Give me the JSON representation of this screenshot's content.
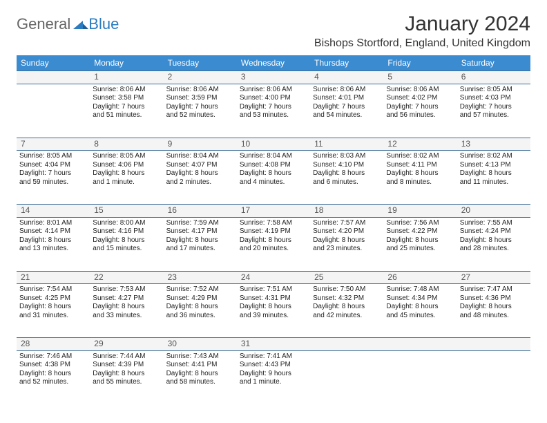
{
  "logo": {
    "text1": "General",
    "text2": "Blue"
  },
  "header": {
    "month_title": "January 2024",
    "location": "Bishops Stortford, England, United Kingdom"
  },
  "colors": {
    "header_bg": "#3a8bd0",
    "header_fg": "#ffffff",
    "daynum_bg": "#f4f4f4",
    "border": "#3a6d95",
    "logo_gray": "#666666",
    "logo_blue": "#2b7cc0"
  },
  "weekdays": [
    "Sunday",
    "Monday",
    "Tuesday",
    "Wednesday",
    "Thursday",
    "Friday",
    "Saturday"
  ],
  "weeks": [
    {
      "nums": [
        "",
        "1",
        "2",
        "3",
        "4",
        "5",
        "6"
      ],
      "cells": [
        null,
        {
          "sunrise": "8:06 AM",
          "sunset": "3:58 PM",
          "day_l1": "Daylight: 7 hours",
          "day_l2": "and 51 minutes."
        },
        {
          "sunrise": "8:06 AM",
          "sunset": "3:59 PM",
          "day_l1": "Daylight: 7 hours",
          "day_l2": "and 52 minutes."
        },
        {
          "sunrise": "8:06 AM",
          "sunset": "4:00 PM",
          "day_l1": "Daylight: 7 hours",
          "day_l2": "and 53 minutes."
        },
        {
          "sunrise": "8:06 AM",
          "sunset": "4:01 PM",
          "day_l1": "Daylight: 7 hours",
          "day_l2": "and 54 minutes."
        },
        {
          "sunrise": "8:06 AM",
          "sunset": "4:02 PM",
          "day_l1": "Daylight: 7 hours",
          "day_l2": "and 56 minutes."
        },
        {
          "sunrise": "8:05 AM",
          "sunset": "4:03 PM",
          "day_l1": "Daylight: 7 hours",
          "day_l2": "and 57 minutes."
        }
      ]
    },
    {
      "nums": [
        "7",
        "8",
        "9",
        "10",
        "11",
        "12",
        "13"
      ],
      "cells": [
        {
          "sunrise": "8:05 AM",
          "sunset": "4:04 PM",
          "day_l1": "Daylight: 7 hours",
          "day_l2": "and 59 minutes."
        },
        {
          "sunrise": "8:05 AM",
          "sunset": "4:06 PM",
          "day_l1": "Daylight: 8 hours",
          "day_l2": "and 1 minute."
        },
        {
          "sunrise": "8:04 AM",
          "sunset": "4:07 PM",
          "day_l1": "Daylight: 8 hours",
          "day_l2": "and 2 minutes."
        },
        {
          "sunrise": "8:04 AM",
          "sunset": "4:08 PM",
          "day_l1": "Daylight: 8 hours",
          "day_l2": "and 4 minutes."
        },
        {
          "sunrise": "8:03 AM",
          "sunset": "4:10 PM",
          "day_l1": "Daylight: 8 hours",
          "day_l2": "and 6 minutes."
        },
        {
          "sunrise": "8:02 AM",
          "sunset": "4:11 PM",
          "day_l1": "Daylight: 8 hours",
          "day_l2": "and 8 minutes."
        },
        {
          "sunrise": "8:02 AM",
          "sunset": "4:13 PM",
          "day_l1": "Daylight: 8 hours",
          "day_l2": "and 11 minutes."
        }
      ]
    },
    {
      "nums": [
        "14",
        "15",
        "16",
        "17",
        "18",
        "19",
        "20"
      ],
      "cells": [
        {
          "sunrise": "8:01 AM",
          "sunset": "4:14 PM",
          "day_l1": "Daylight: 8 hours",
          "day_l2": "and 13 minutes."
        },
        {
          "sunrise": "8:00 AM",
          "sunset": "4:16 PM",
          "day_l1": "Daylight: 8 hours",
          "day_l2": "and 15 minutes."
        },
        {
          "sunrise": "7:59 AM",
          "sunset": "4:17 PM",
          "day_l1": "Daylight: 8 hours",
          "day_l2": "and 17 minutes."
        },
        {
          "sunrise": "7:58 AM",
          "sunset": "4:19 PM",
          "day_l1": "Daylight: 8 hours",
          "day_l2": "and 20 minutes."
        },
        {
          "sunrise": "7:57 AM",
          "sunset": "4:20 PM",
          "day_l1": "Daylight: 8 hours",
          "day_l2": "and 23 minutes."
        },
        {
          "sunrise": "7:56 AM",
          "sunset": "4:22 PM",
          "day_l1": "Daylight: 8 hours",
          "day_l2": "and 25 minutes."
        },
        {
          "sunrise": "7:55 AM",
          "sunset": "4:24 PM",
          "day_l1": "Daylight: 8 hours",
          "day_l2": "and 28 minutes."
        }
      ]
    },
    {
      "nums": [
        "21",
        "22",
        "23",
        "24",
        "25",
        "26",
        "27"
      ],
      "cells": [
        {
          "sunrise": "7:54 AM",
          "sunset": "4:25 PM",
          "day_l1": "Daylight: 8 hours",
          "day_l2": "and 31 minutes."
        },
        {
          "sunrise": "7:53 AM",
          "sunset": "4:27 PM",
          "day_l1": "Daylight: 8 hours",
          "day_l2": "and 33 minutes."
        },
        {
          "sunrise": "7:52 AM",
          "sunset": "4:29 PM",
          "day_l1": "Daylight: 8 hours",
          "day_l2": "and 36 minutes."
        },
        {
          "sunrise": "7:51 AM",
          "sunset": "4:31 PM",
          "day_l1": "Daylight: 8 hours",
          "day_l2": "and 39 minutes."
        },
        {
          "sunrise": "7:50 AM",
          "sunset": "4:32 PM",
          "day_l1": "Daylight: 8 hours",
          "day_l2": "and 42 minutes."
        },
        {
          "sunrise": "7:48 AM",
          "sunset": "4:34 PM",
          "day_l1": "Daylight: 8 hours",
          "day_l2": "and 45 minutes."
        },
        {
          "sunrise": "7:47 AM",
          "sunset": "4:36 PM",
          "day_l1": "Daylight: 8 hours",
          "day_l2": "and 48 minutes."
        }
      ]
    },
    {
      "nums": [
        "28",
        "29",
        "30",
        "31",
        "",
        "",
        ""
      ],
      "cells": [
        {
          "sunrise": "7:46 AM",
          "sunset": "4:38 PM",
          "day_l1": "Daylight: 8 hours",
          "day_l2": "and 52 minutes."
        },
        {
          "sunrise": "7:44 AM",
          "sunset": "4:39 PM",
          "day_l1": "Daylight: 8 hours",
          "day_l2": "and 55 minutes."
        },
        {
          "sunrise": "7:43 AM",
          "sunset": "4:41 PM",
          "day_l1": "Daylight: 8 hours",
          "day_l2": "and 58 minutes."
        },
        {
          "sunrise": "7:41 AM",
          "sunset": "4:43 PM",
          "day_l1": "Daylight: 9 hours",
          "day_l2": "and 1 minute."
        },
        null,
        null,
        null
      ]
    }
  ]
}
